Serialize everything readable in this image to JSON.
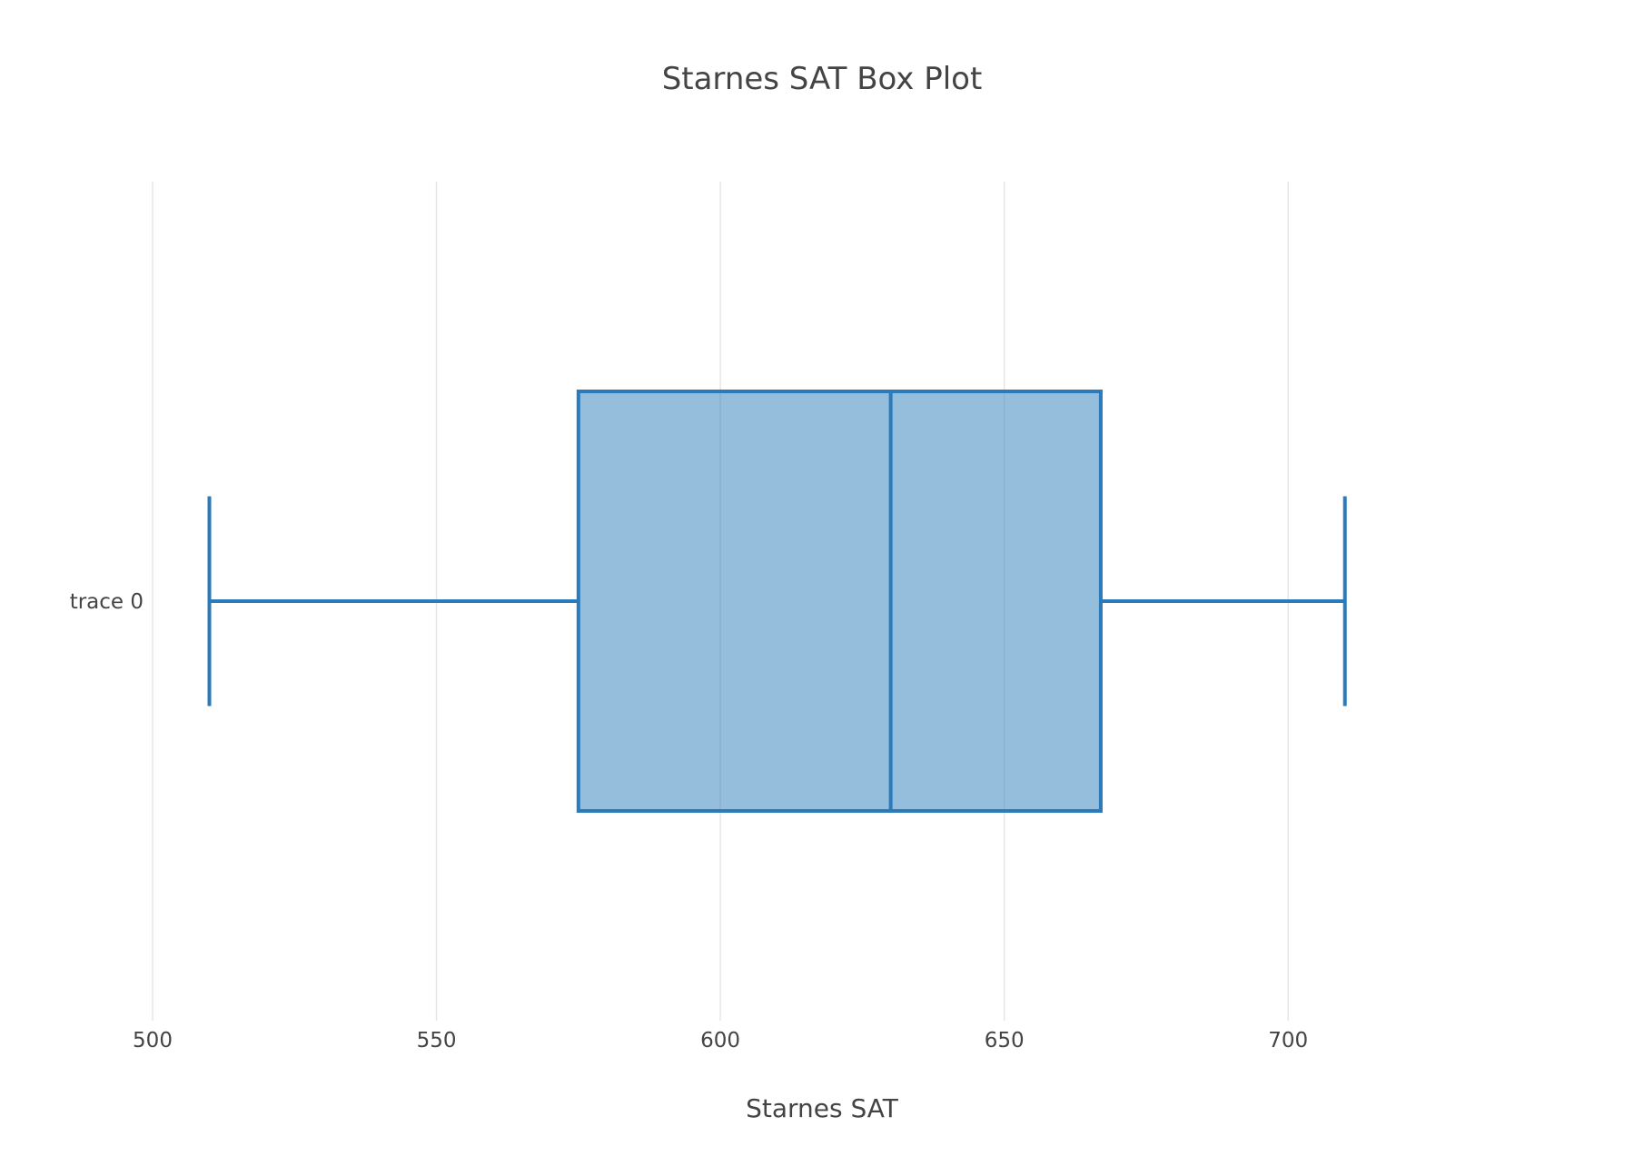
{
  "chart_data": {
    "type": "box",
    "title": "Starnes SAT Box Plot",
    "xlabel": "Starnes SAT",
    "ylabel": "",
    "orientation": "horizontal",
    "xlim": [
      500,
      735
    ],
    "x_ticks": [
      "500",
      "550",
      "600",
      "650",
      "700"
    ],
    "x_tick_values": [
      500,
      550,
      600,
      650,
      700
    ],
    "grid": "vertical",
    "series": [
      {
        "name": "trace 0",
        "min": 510,
        "q1": 575,
        "median": 630,
        "q3": 667,
        "max": 710
      }
    ],
    "colors": {
      "line": "#2b7bba",
      "fill": "#8fb9d9",
      "text": "#444444",
      "grid": "#e6e6e6"
    }
  }
}
